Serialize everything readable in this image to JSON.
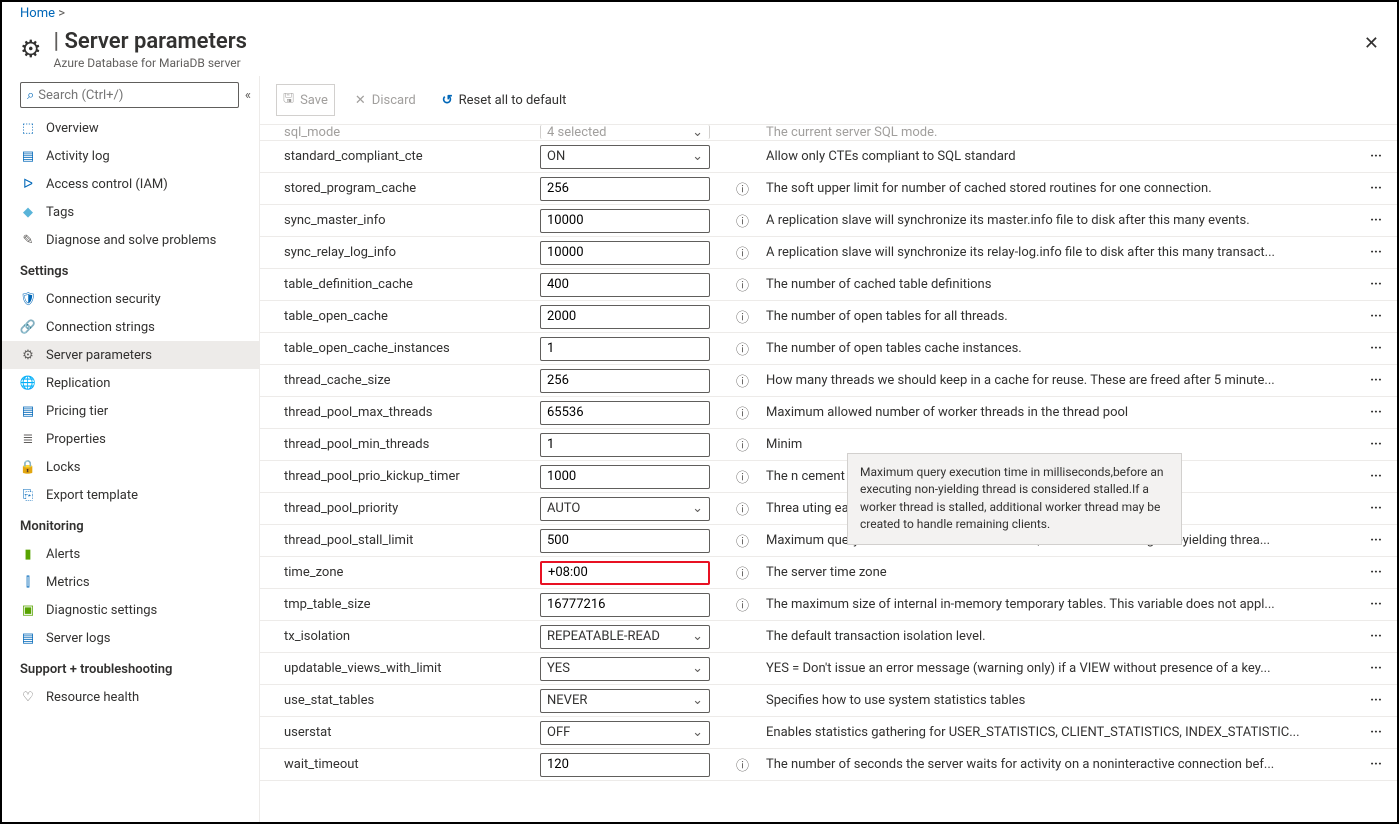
{
  "breadcrumb": {
    "home": "Home"
  },
  "header": {
    "title_prefix": "| ",
    "title": "Server parameters",
    "subtitle": "Azure Database for MariaDB server"
  },
  "search": {
    "placeholder": "Search (Ctrl+/)"
  },
  "toolbar": {
    "save": "Save",
    "discard": "Discard",
    "reset": "Reset all to default"
  },
  "nav": {
    "items_top": [
      {
        "icon": "⬚",
        "color": "#0067b8",
        "label": "Overview"
      },
      {
        "icon": "▤",
        "color": "#0067b8",
        "label": "Activity log"
      },
      {
        "icon": "ᐅ",
        "color": "#0067b8",
        "label": "Access control (IAM)"
      },
      {
        "icon": "◆",
        "color": "#59b4d9",
        "label": "Tags"
      },
      {
        "icon": "✎",
        "color": "#605e5c",
        "label": "Diagnose and solve problems"
      }
    ],
    "sec_settings": "Settings",
    "items_settings": [
      {
        "icon": "🛡",
        "color": "#0067b8",
        "label": "Connection security"
      },
      {
        "icon": "🔗",
        "color": "#605e5c",
        "label": "Connection strings"
      },
      {
        "icon": "⚙",
        "color": "#605e5c",
        "label": "Server parameters",
        "sel": true
      },
      {
        "icon": "🌐",
        "color": "#59b4d9",
        "label": "Replication"
      },
      {
        "icon": "▤",
        "color": "#0067b8",
        "label": "Pricing tier"
      },
      {
        "icon": "≣",
        "color": "#605e5c",
        "label": "Properties"
      },
      {
        "icon": "🔒",
        "color": "#0067b8",
        "label": "Locks"
      },
      {
        "icon": "⎘",
        "color": "#0067b8",
        "label": "Export template"
      }
    ],
    "sec_monitoring": "Monitoring",
    "items_monitoring": [
      {
        "icon": "▮",
        "color": "#57a300",
        "label": "Alerts"
      },
      {
        "icon": "⫿",
        "color": "#0067b8",
        "label": "Metrics"
      },
      {
        "icon": "▣",
        "color": "#57a300",
        "label": "Diagnostic settings"
      },
      {
        "icon": "▤",
        "color": "#0067b8",
        "label": "Server logs"
      }
    ],
    "sec_support": "Support + troubleshooting",
    "items_support": [
      {
        "icon": "♡",
        "color": "#605e5c",
        "label": "Resource health"
      }
    ]
  },
  "tooltip": "Maximum query execution time in milliseconds,before an executing non-yielding thread is considered stalled.If a worker thread is stalled, additional worker thread may be created to handle remaining clients.",
  "rows": [
    {
      "name": "sql_mode",
      "type": "select",
      "value": "4 selected",
      "info": false,
      "desc": "The current server SQL mode.",
      "cut": true
    },
    {
      "name": "standard_compliant_cte",
      "type": "select",
      "value": "ON",
      "info": false,
      "desc": "Allow only CTEs compliant to SQL standard"
    },
    {
      "name": "stored_program_cache",
      "type": "text",
      "value": "256",
      "info": true,
      "desc": "The soft upper limit for number of cached stored routines for one connection."
    },
    {
      "name": "sync_master_info",
      "type": "text",
      "value": "10000",
      "info": true,
      "desc": "A replication slave will synchronize its master.info file to disk after this many events."
    },
    {
      "name": "sync_relay_log_info",
      "type": "text",
      "value": "10000",
      "info": true,
      "desc": "A replication slave will synchronize its relay-log.info file to disk after this many transact..."
    },
    {
      "name": "table_definition_cache",
      "type": "text",
      "value": "400",
      "info": true,
      "desc": "The number of cached table definitions"
    },
    {
      "name": "table_open_cache",
      "type": "text",
      "value": "2000",
      "info": true,
      "desc": "The number of open tables for all threads."
    },
    {
      "name": "table_open_cache_instances",
      "type": "text",
      "value": "1",
      "info": true,
      "desc": "The number of open tables cache instances."
    },
    {
      "name": "thread_cache_size",
      "type": "text",
      "value": "256",
      "info": true,
      "desc": "How many threads we should keep in a cache for reuse. These are freed after 5 minute..."
    },
    {
      "name": "thread_pool_max_threads",
      "type": "text",
      "value": "65536",
      "info": true,
      "desc": "Maximum allowed number of worker threads in the thread pool"
    },
    {
      "name": "thread_pool_min_threads",
      "type": "text",
      "value": "1",
      "info": true,
      "desc": "Minim"
    },
    {
      "name": "thread_pool_prio_kickup_timer",
      "type": "text",
      "value": "1000",
      "info": true,
      "desc": "The n                                                                                                                                                  cement is moved to the..."
    },
    {
      "name": "thread_pool_priority",
      "type": "select",
      "value": "AUTO",
      "info": true,
      "desc": "Threa                                                                                                                                                    uting earlier than low ..."
    },
    {
      "name": "thread_pool_stall_limit",
      "type": "text",
      "value": "500",
      "info": true,
      "desc": "Maximum query execution time in milliseconds,before an executing non-yielding threa..."
    },
    {
      "name": "time_zone",
      "type": "text",
      "value": "+08:00",
      "info": true,
      "desc": "The server time zone",
      "hl": true
    },
    {
      "name": "tmp_table_size",
      "type": "text",
      "value": "16777216",
      "info": true,
      "desc": "The maximum size of internal in-memory temporary tables. This variable does not appl..."
    },
    {
      "name": "tx_isolation",
      "type": "select",
      "value": "REPEATABLE-READ",
      "info": false,
      "desc": "The default transaction isolation level."
    },
    {
      "name": "updatable_views_with_limit",
      "type": "select",
      "value": "YES",
      "info": false,
      "desc": "YES = Don't issue an error message (warning only) if a VIEW without presence of a key..."
    },
    {
      "name": "use_stat_tables",
      "type": "select",
      "value": "NEVER",
      "info": false,
      "desc": "Specifies how to use system statistics tables"
    },
    {
      "name": "userstat",
      "type": "select",
      "value": "OFF",
      "info": false,
      "desc": "Enables statistics gathering for USER_STATISTICS, CLIENT_STATISTICS, INDEX_STATISTIC..."
    },
    {
      "name": "wait_timeout",
      "type": "text",
      "value": "120",
      "info": true,
      "desc": "The number of seconds the server waits for activity on a noninteractive connection bef..."
    }
  ]
}
